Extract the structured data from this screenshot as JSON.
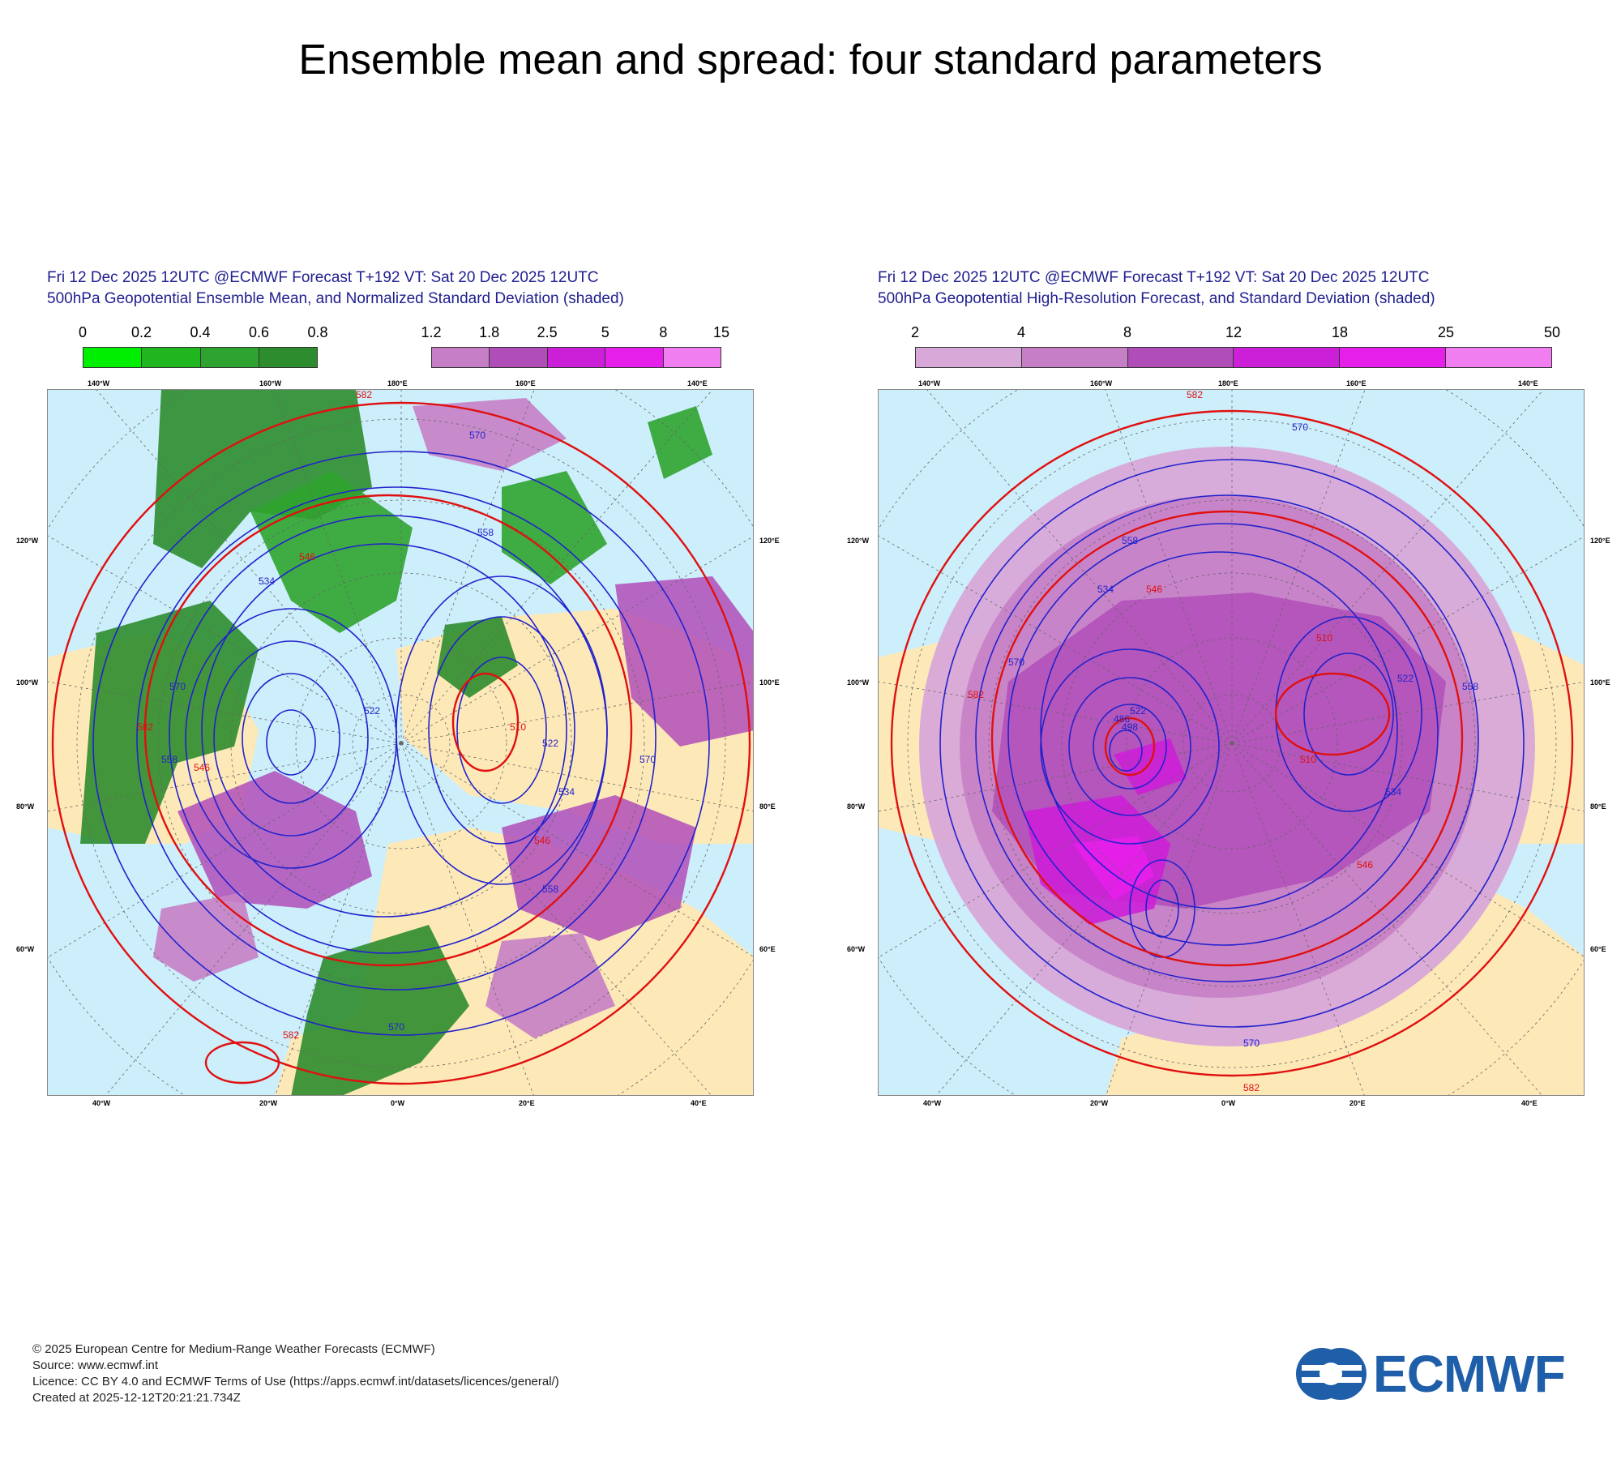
{
  "page_title": "Ensemble mean and spread: four standard parameters",
  "colors": {
    "header_text": "#1f1f8f",
    "sea": "#cdeefb",
    "land": "#fde9b8",
    "contour": "#2222cc",
    "contour_highlight": "#e01010",
    "brand": "#1f5ea8"
  },
  "panels": [
    {
      "header_line1": "Fri 12 Dec 2025 12UTC @ECMWF Forecast T+192 VT: Sat 20 Dec 2025 12UTC",
      "header_line2": "500hPa Geopotential Ensemble Mean, and Normalized Standard Deviation (shaded)",
      "legends": [
        {
          "ticks": [
            "0",
            "0.2",
            "0.4",
            "0.6",
            "0.8"
          ],
          "colors": [
            "#00ee00",
            "#1fb61f",
            "#2fa32f",
            "#2d8c2d"
          ]
        },
        {
          "ticks": [
            "1.2",
            "1.8",
            "2.5",
            "5",
            "8",
            "15"
          ],
          "colors": [
            "#c67fc6",
            "#b04db8",
            "#cc1fd8",
            "#e61fea",
            "#f07ef0"
          ]
        }
      ],
      "top_labels": [
        "140°W",
        "160°W",
        "180°E",
        "160°E",
        "140°E"
      ],
      "bottom_labels": [
        "40°W",
        "20°W",
        "0°W",
        "20°E",
        "40°E"
      ],
      "left_labels": [
        "120°W",
        "100°W",
        "80°W",
        "60°W"
      ],
      "right_labels": [
        "120°E",
        "100°E",
        "80°E",
        "60°E"
      ],
      "contour_labels": [
        "582",
        "570",
        "558",
        "546",
        "534",
        "522",
        "510",
        "582",
        "570",
        "558",
        "546",
        "534",
        "522",
        "570",
        "558",
        "546",
        "570",
        "582"
      ]
    },
    {
      "header_line1": "Fri 12 Dec 2025 12UTC @ECMWF Forecast T+192 VT: Sat 20 Dec 2025 12UTC",
      "header_line2": "500hPa Geopotential High-Resolution Forecast, and Standard Deviation (shaded)",
      "legends": [
        {
          "ticks": [
            "2",
            "4",
            "8",
            "12",
            "18",
            "25",
            "50"
          ],
          "colors": [
            "#d8a8d8",
            "#c67fc6",
            "#b04db8",
            "#cc1fd8",
            "#e61fea",
            "#f07ef0"
          ]
        }
      ],
      "top_labels": [
        "140°W",
        "160°W",
        "180°E",
        "160°E",
        "140°E"
      ],
      "bottom_labels": [
        "40°W",
        "20°W",
        "0°W",
        "20°E",
        "40°E"
      ],
      "left_labels": [
        "120°W",
        "100°W",
        "80°W",
        "60°W"
      ],
      "right_labels": [
        "120°E",
        "100°E",
        "80°E",
        "60°E"
      ],
      "contour_labels": [
        "582",
        "570",
        "558",
        "546",
        "534",
        "522",
        "510",
        "498",
        "486",
        "582",
        "570",
        "558",
        "546",
        "534",
        "522",
        "510",
        "570",
        "582"
      ]
    }
  ],
  "footer": {
    "line1": "© 2025 European Centre for Medium-Range Weather Forecasts (ECMWF)",
    "line2": "Source: www.ecmwf.int",
    "line3": "Licence: CC BY 4.0 and ECMWF Terms of Use (https://apps.ecmwf.int/datasets/licences/general/)",
    "line4": "Created at 2025-12-12T20:21:21.734Z"
  },
  "logo": {
    "text": "ECMWF"
  }
}
